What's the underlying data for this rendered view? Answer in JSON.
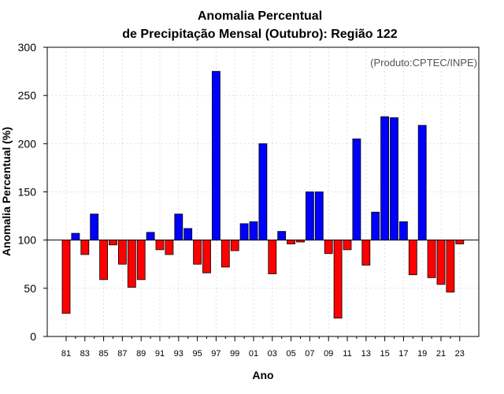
{
  "chart_data": {
    "type": "bar",
    "title": "Anomalia Percentual",
    "subtitle": "de Precipitação Mensal (Outubro): Região 122",
    "credit": "(Produto:CPTEC/INPE)",
    "xlabel": "Ano",
    "ylabel": "Anomalia Percentual (%)",
    "ylim": [
      0,
      300
    ],
    "yticks": [
      0,
      50,
      100,
      150,
      200,
      250,
      300
    ],
    "baseline": 100,
    "grid": true,
    "categories": [
      "81",
      "82",
      "83",
      "84",
      "85",
      "86",
      "87",
      "88",
      "89",
      "90",
      "91",
      "92",
      "93",
      "94",
      "95",
      "96",
      "97",
      "98",
      "99",
      "00",
      "01",
      "02",
      "03",
      "04",
      "05",
      "06",
      "07",
      "08",
      "09",
      "10",
      "11",
      "12",
      "13",
      "14",
      "15",
      "16",
      "17",
      "18",
      "19",
      "20",
      "21",
      "22",
      "23"
    ],
    "tick_labels": [
      "81",
      "83",
      "85",
      "87",
      "89",
      "91",
      "93",
      "95",
      "97",
      "99",
      "01",
      "03",
      "05",
      "07",
      "09",
      "11",
      "13",
      "15",
      "17",
      "19",
      "21",
      "23"
    ],
    "values": [
      24,
      107,
      85,
      127,
      59,
      95,
      75,
      51,
      59,
      108,
      90,
      85,
      127,
      112,
      75,
      66,
      275,
      72,
      89,
      117,
      119,
      200,
      65,
      109,
      96,
      98,
      150,
      150,
      86,
      19,
      90,
      205,
      74,
      129,
      228,
      227,
      119,
      64,
      219,
      61,
      54,
      46,
      96
    ],
    "colors": {
      "above": "#0000ff",
      "below": "#ff0000"
    }
  }
}
